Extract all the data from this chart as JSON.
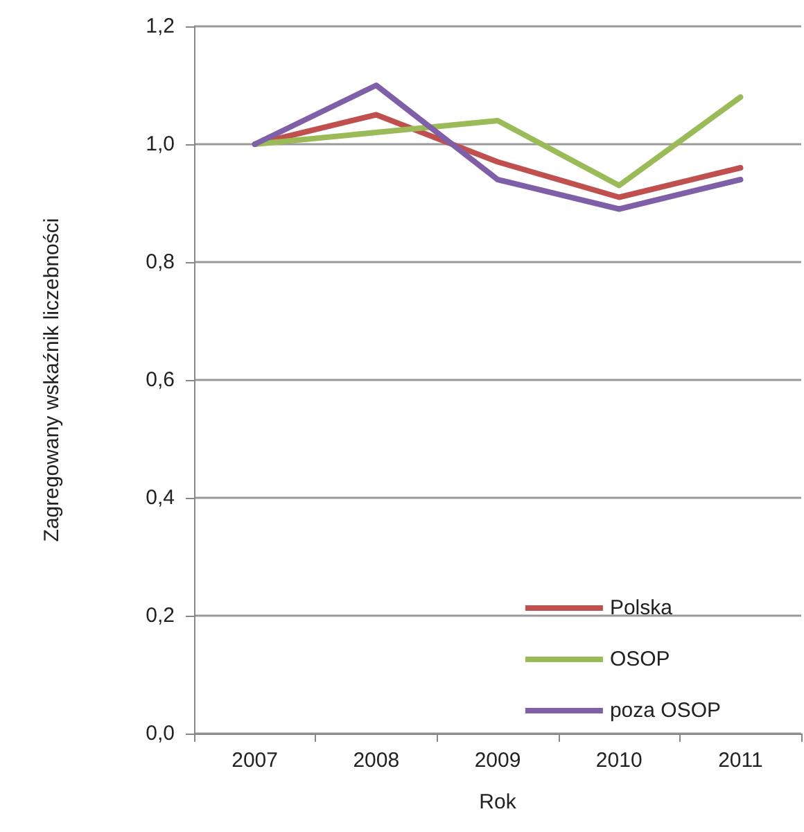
{
  "chart_data": {
    "type": "line",
    "xlabel": "Rok",
    "ylabel": "Zagregowany wskaźnik liczebności",
    "categories": [
      "2007",
      "2008",
      "2009",
      "2010",
      "2011"
    ],
    "series": [
      {
        "name": "Polska",
        "color": "#c0504d",
        "values": [
          1.0,
          1.05,
          0.97,
          0.91,
          0.96
        ]
      },
      {
        "name": "OSOP",
        "color": "#9bbb59",
        "values": [
          1.0,
          1.02,
          1.04,
          0.93,
          1.08
        ]
      },
      {
        "name": "poza OSOP",
        "color": "#7f5fa8",
        "values": [
          1.0,
          1.1,
          0.94,
          0.89,
          0.94
        ]
      }
    ],
    "ylim": [
      0,
      1.2
    ],
    "yticks": [
      {
        "value": 0,
        "label": "0,0"
      },
      {
        "value": 0.2,
        "label": "0,2"
      },
      {
        "value": 0.4,
        "label": "0,4"
      },
      {
        "value": 0.6,
        "label": "0,6"
      },
      {
        "value": 0.8,
        "label": "0,8"
      },
      {
        "value": 1.0,
        "label": "1,0"
      },
      {
        "value": 1.2,
        "label": "1,2"
      }
    ],
    "grid": "y",
    "legend": "bottom right",
    "marker": "none",
    "line_style": "solid"
  }
}
